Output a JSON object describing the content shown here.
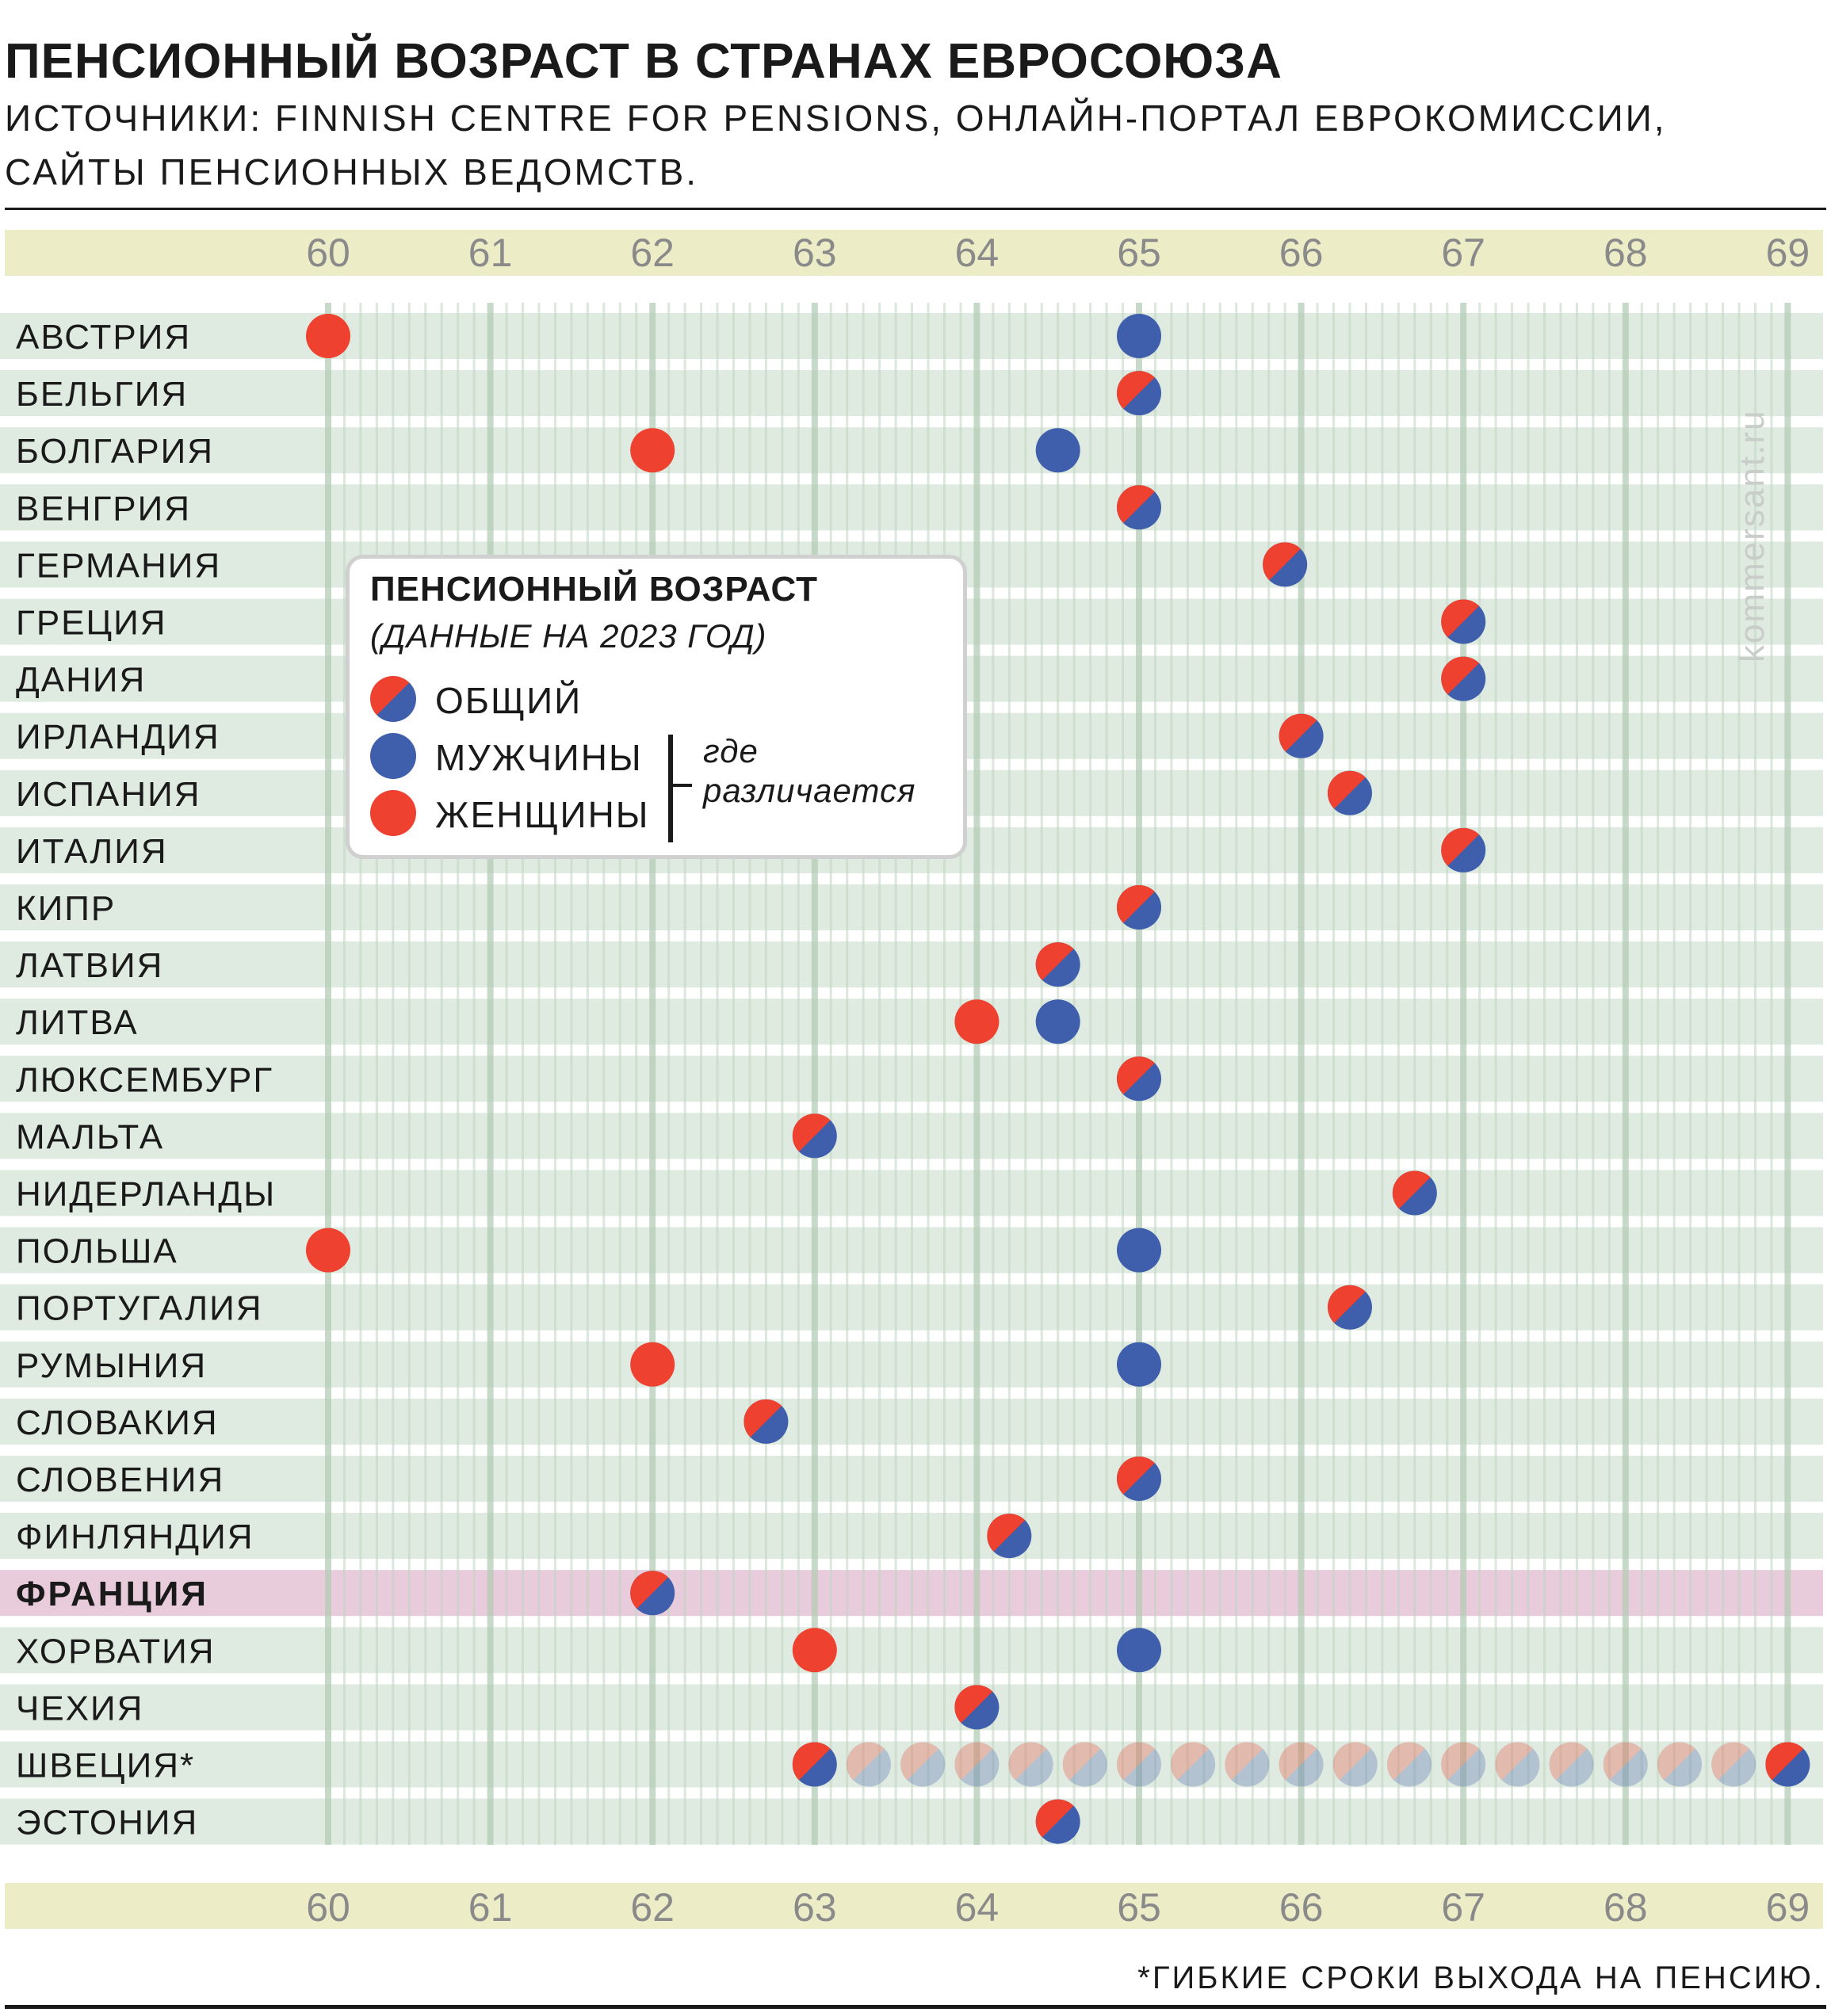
{
  "title": "ПЕНСИОННЫЙ ВОЗРАСТ В СТРАНАХ ЕВРОСОЮЗА",
  "sources_line1": "ИСТОЧНИКИ: FINNISH CENTRE FOR PENSIONS, ОНЛАЙН-ПОРТАЛ ЕВРОКОМИССИИ,",
  "sources_line2": "САЙТЫ ПЕНСИОННЫХ ВЕДОМСТВ.",
  "watermark": "kommersant.ru",
  "footnote": "*ГИБКИЕ СРОКИ ВЫХОДА НА ПЕНСИЮ.",
  "colors": {
    "women": "#ee4130",
    "men": "#3f5eab",
    "row_band": "#dfeae0",
    "axis_band": "#ecedc6",
    "highlight_band": "#e8ccdc",
    "tick_text": "#8a8a8a"
  },
  "legend": {
    "title": "ПЕНСИОННЫЙ ВОЗРАСТ",
    "subtitle": "(ДАННЫЕ НА 2023 ГОД)",
    "general": "ОБЩИЙ",
    "men": "МУЖЧИНЫ",
    "women": "ЖЕНЩИНЫ",
    "note_line1": "где",
    "note_line2": "различается"
  },
  "chart_data": {
    "type": "scatter",
    "title": "ПЕНСИОННЫЙ ВОЗРАСТ В СТРАНАХ ЕВРОСОЮЗА",
    "x_ticks": [
      60,
      61,
      62,
      63,
      64,
      65,
      66,
      67,
      68,
      69
    ],
    "xlim": [
      60,
      69
    ],
    "highlight": "ФРАНЦИЯ",
    "flexible_range": {
      "country": "ШВЕЦИЯ*",
      "from": 63,
      "to": 69
    },
    "rows": [
      {
        "country": "АВСТРИЯ",
        "women": 60,
        "men": 65
      },
      {
        "country": "БЕЛЬГИЯ",
        "general": 65
      },
      {
        "country": "БОЛГАРИЯ",
        "women": 62,
        "men": 64.5
      },
      {
        "country": "ВЕНГРИЯ",
        "general": 65
      },
      {
        "country": "ГЕРМАНИЯ",
        "general": 65.9
      },
      {
        "country": "ГРЕЦИЯ",
        "general": 67
      },
      {
        "country": "ДАНИЯ",
        "general": 67
      },
      {
        "country": "ИРЛАНДИЯ",
        "general": 66
      },
      {
        "country": "ИСПАНИЯ",
        "general": 66.3
      },
      {
        "country": "ИТАЛИЯ",
        "general": 67
      },
      {
        "country": "КИПР",
        "general": 65
      },
      {
        "country": "ЛАТВИЯ",
        "general": 64.5
      },
      {
        "country": "ЛИТВА",
        "women": 64,
        "men": 64.5
      },
      {
        "country": "ЛЮКСЕМБУРГ",
        "general": 65
      },
      {
        "country": "МАЛЬТА",
        "general": 63
      },
      {
        "country": "НИДЕРЛАНДЫ",
        "general": 66.7
      },
      {
        "country": "ПОЛЬША",
        "women": 60,
        "men": 65
      },
      {
        "country": "ПОРТУГАЛИЯ",
        "general": 66.3
      },
      {
        "country": "РУМЫНИЯ",
        "women": 62,
        "men": 65
      },
      {
        "country": "СЛОВАКИЯ",
        "general": 62.7
      },
      {
        "country": "СЛОВЕНИЯ",
        "general": 65
      },
      {
        "country": "ФИНЛЯНДИЯ",
        "general": 64.2
      },
      {
        "country": "ФРАНЦИЯ",
        "general": 62
      },
      {
        "country": "ХОРВАТИЯ",
        "women": 63,
        "men": 65
      },
      {
        "country": "ЧЕХИЯ",
        "general": 64
      },
      {
        "country": "ШВЕЦИЯ*",
        "general": 63
      },
      {
        "country": "ЭСТОНИЯ",
        "general": 64.5
      }
    ]
  }
}
